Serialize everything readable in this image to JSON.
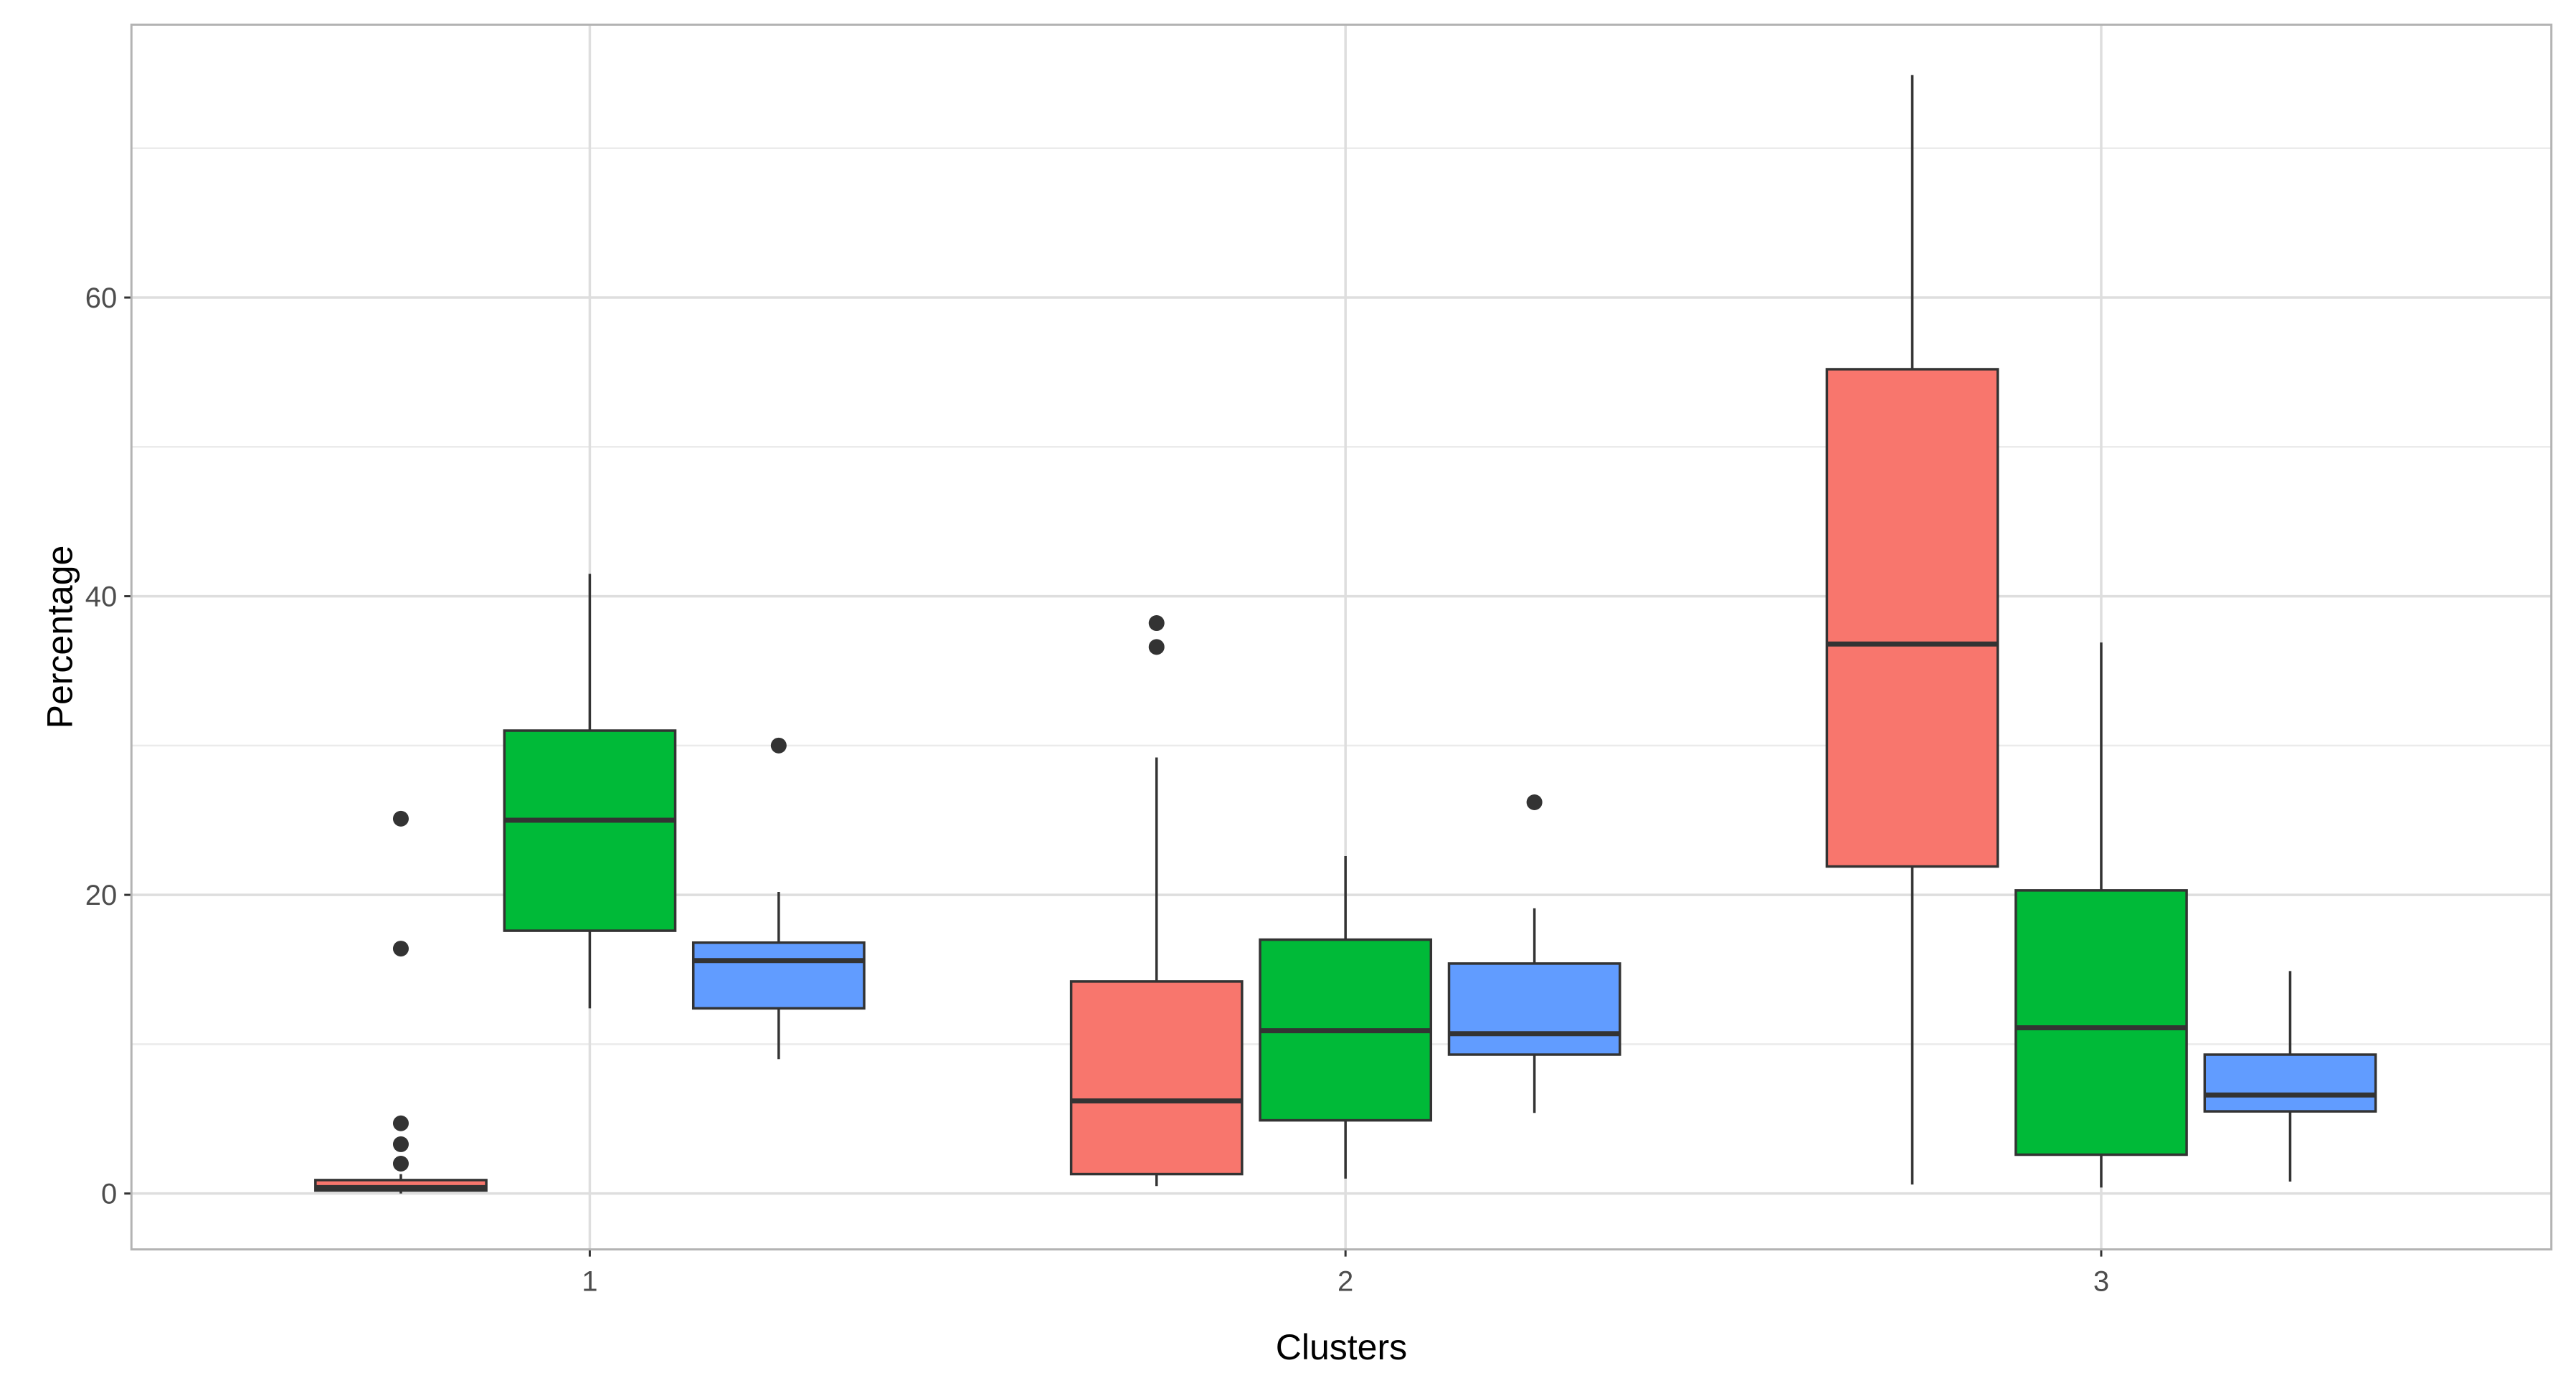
{
  "chart_data": {
    "type": "boxplot",
    "xlabel": "Clusters",
    "ylabel": "Percentage",
    "categories": [
      "1",
      "2",
      "3"
    ],
    "y_ticks": [
      0,
      20,
      40,
      60
    ],
    "ylim": [
      -3.6,
      78.5
    ],
    "grid": true,
    "legend": "none",
    "colors": [
      "#F8766D",
      "#00BA38",
      "#619CFF"
    ],
    "groups": [
      {
        "category": "1",
        "boxes": [
          {
            "fill": "#F8766D",
            "whisker_low": 0.0,
            "q1": 0.2,
            "median": 0.4,
            "q3": 0.9,
            "whisker_high": 1.3,
            "outliers": [
              2.0,
              3.3,
              4.7,
              16.4,
              25.1
            ]
          },
          {
            "fill": "#00BA38",
            "whisker_low": 12.4,
            "q1": 17.6,
            "median": 25.0,
            "q3": 31.0,
            "whisker_high": 41.5,
            "outliers": []
          },
          {
            "fill": "#619CFF",
            "whisker_low": 9.0,
            "q1": 12.4,
            "median": 15.6,
            "q3": 16.8,
            "whisker_high": 20.2,
            "outliers": [
              30.0
            ]
          }
        ]
      },
      {
        "category": "2",
        "boxes": [
          {
            "fill": "#F8766D",
            "whisker_low": 0.5,
            "q1": 1.3,
            "median": 6.2,
            "q3": 14.2,
            "whisker_high": 29.2,
            "outliers": [
              36.6,
              38.2
            ]
          },
          {
            "fill": "#00BA38",
            "whisker_low": 1.0,
            "q1": 4.9,
            "median": 10.9,
            "q3": 17.0,
            "whisker_high": 22.6,
            "outliers": []
          },
          {
            "fill": "#619CFF",
            "whisker_low": 5.4,
            "q1": 9.3,
            "median": 10.7,
            "q3": 15.4,
            "whisker_high": 19.1,
            "outliers": [
              26.2
            ]
          }
        ]
      },
      {
        "category": "3",
        "boxes": [
          {
            "fill": "#F8766D",
            "whisker_low": 0.6,
            "q1": 21.9,
            "median": 36.8,
            "q3": 55.2,
            "whisker_high": 74.9,
            "outliers": []
          },
          {
            "fill": "#00BA38",
            "whisker_low": 0.4,
            "q1": 2.6,
            "median": 11.1,
            "q3": 20.3,
            "whisker_high": 36.9,
            "outliers": []
          },
          {
            "fill": "#619CFF",
            "whisker_low": 0.8,
            "q1": 5.5,
            "median": 6.6,
            "q3": 9.3,
            "whisker_high": 14.9,
            "outliers": []
          }
        ]
      }
    ]
  }
}
